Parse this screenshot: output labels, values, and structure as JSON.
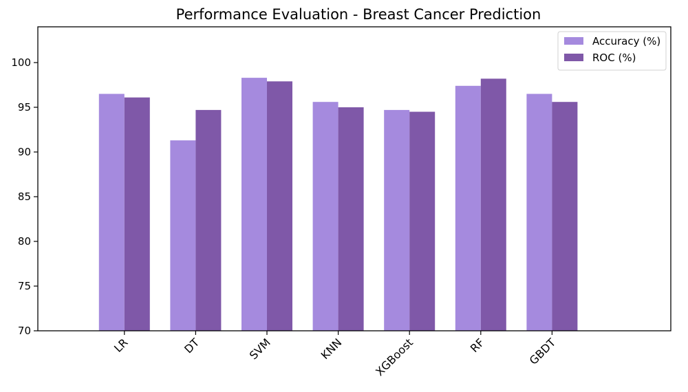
{
  "chart_data": {
    "type": "bar",
    "title": "Performance Evaluation - Breast Cancer Prediction",
    "xlabel": "",
    "ylabel": "",
    "categories": [
      "LR",
      "DT",
      "SVM",
      "KNN",
      "XGBoost",
      "RF",
      "GBDT"
    ],
    "series": [
      {
        "name": "Accuracy (%)",
        "color": "#a58ade",
        "values": [
          96.5,
          91.3,
          98.3,
          95.6,
          94.7,
          97.4,
          96.5
        ]
      },
      {
        "name": "ROC (%)",
        "color": "#7f58a8",
        "values": [
          96.1,
          94.7,
          97.9,
          95.0,
          94.5,
          98.2,
          95.6
        ]
      }
    ],
    "ylim": [
      70,
      104
    ],
    "yticks": [
      70,
      75,
      80,
      85,
      90,
      95,
      100
    ],
    "grid": false,
    "legend_position": "top-right"
  }
}
